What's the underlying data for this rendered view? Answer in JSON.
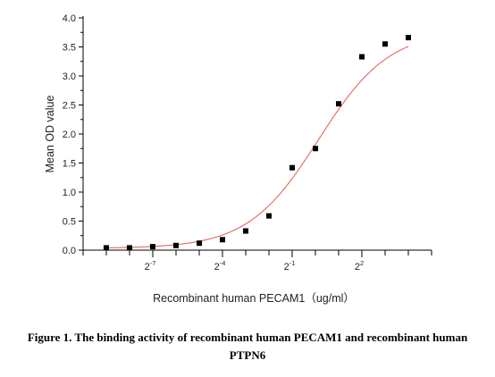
{
  "chart_data": {
    "type": "scatter",
    "xlabel": "Recombinant human  PECAM1（ug/ml）",
    "ylabel": "Mean OD value",
    "x_scale": "log2",
    "ylim": [
      0,
      4.0
    ],
    "y_ticks": [
      0.0,
      0.5,
      1.0,
      1.5,
      2.0,
      2.5,
      3.0,
      3.5,
      4.0
    ],
    "y_tick_labels": [
      "0.0",
      "0.5",
      "1.0",
      "1.5",
      "2.0",
      "2.5",
      "3.0",
      "3.5",
      "4.0"
    ],
    "x_labeled_ticks": [
      {
        "base": "2",
        "exp": "-7",
        "value": 0.0078125
      },
      {
        "base": "2",
        "exp": "-4",
        "value": 0.0625
      },
      {
        "base": "2",
        "exp": "-1",
        "value": 0.5
      },
      {
        "base": "2",
        "exp": "2",
        "value": 4
      }
    ],
    "grid": false,
    "legend": "none",
    "marker_color": "#000000",
    "fit_color": "#e8655f",
    "points": [
      {
        "x": 0.00195,
        "y": 0.04
      },
      {
        "x": 0.0039,
        "y": 0.04
      },
      {
        "x": 0.0078,
        "y": 0.06
      },
      {
        "x": 0.0156,
        "y": 0.08
      },
      {
        "x": 0.0313,
        "y": 0.12
      },
      {
        "x": 0.0625,
        "y": 0.18
      },
      {
        "x": 0.125,
        "y": 0.33
      },
      {
        "x": 0.25,
        "y": 0.59
      },
      {
        "x": 0.5,
        "y": 1.42
      },
      {
        "x": 1,
        "y": 1.75
      },
      {
        "x": 2,
        "y": 2.52
      },
      {
        "x": 4,
        "y": 3.33
      },
      {
        "x": 8,
        "y": 3.55
      },
      {
        "x": 16,
        "y": 3.66
      }
    ],
    "fit": {
      "bottom": 0.03,
      "top": 3.78,
      "ec50": 1.1,
      "hill": 0.95
    }
  },
  "caption": {
    "line1": "Figure 1. The binding activity of recombinant human PECAM1 and recombinant human",
    "line2": "PTPN6"
  }
}
